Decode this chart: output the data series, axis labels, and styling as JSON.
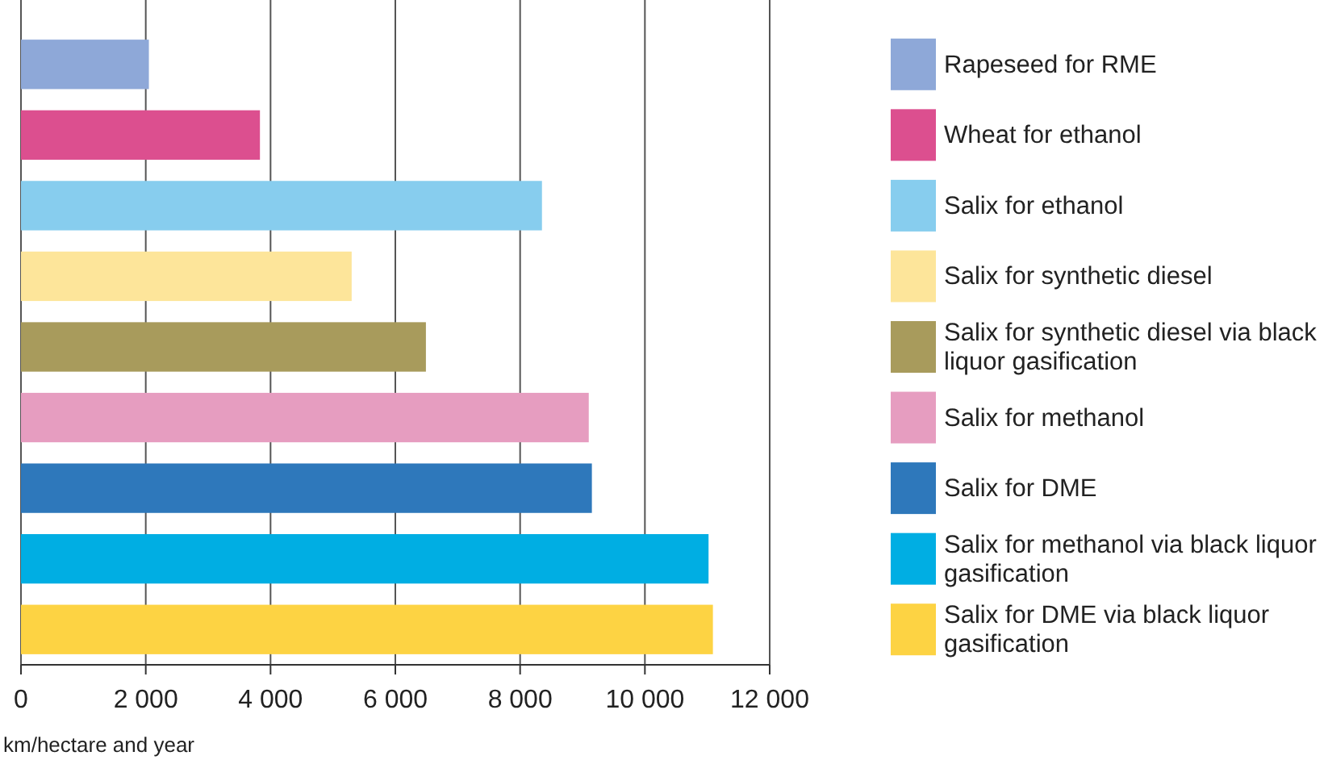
{
  "chart_data": {
    "type": "bar",
    "orientation": "horizontal",
    "xlabel": "km/hectare and year",
    "categories": [
      null,
      null,
      null,
      null,
      null,
      null,
      null,
      null,
      null
    ],
    "series": [
      {
        "name": "Rapeseed for RME",
        "color": "#8ea8d8",
        "values": [
          2050,
          null,
          null,
          null,
          null,
          null,
          null,
          null,
          null
        ]
      },
      {
        "name": "Wheat for ethanol",
        "color": "#dc4f8f",
        "values": [
          null,
          3830,
          null,
          null,
          null,
          null,
          null,
          null,
          null
        ]
      },
      {
        "name": "Salix for ethanol",
        "color": "#87cdee",
        "values": [
          null,
          null,
          8350,
          null,
          null,
          null,
          null,
          null,
          null
        ]
      },
      {
        "name": "Salix for synthetic diesel",
        "color": "#fde59a",
        "values": [
          null,
          null,
          null,
          5300,
          null,
          null,
          null,
          null,
          null
        ]
      },
      {
        "name": "Salix for synthetic diesel via black liquor gasification",
        "color": "#a89b5c",
        "values": [
          null,
          null,
          null,
          null,
          6490,
          null,
          null,
          null,
          null
        ]
      },
      {
        "name": "Salix for methanol",
        "color": "#e69dc0",
        "values": [
          null,
          null,
          null,
          null,
          null,
          9100,
          null,
          null,
          null
        ]
      },
      {
        "name": "Salix for DME",
        "color": "#2e78bb",
        "values": [
          null,
          null,
          null,
          null,
          null,
          null,
          9150,
          null,
          null
        ]
      },
      {
        "name": "Salix for methanol via black liquor gasification",
        "color": "#00aee3",
        "values": [
          null,
          null,
          null,
          null,
          null,
          null,
          null,
          11020,
          null
        ]
      },
      {
        "name": "Salix for DME via black liquor gasification",
        "color": "#fdd343",
        "values": [
          null,
          null,
          null,
          null,
          null,
          null,
          null,
          null,
          11090
        ]
      }
    ],
    "xlim": [
      0,
      12000
    ],
    "xticks": [
      0,
      {
        "value": 2000,
        "label": "2 000"
      },
      {
        "value": 4000,
        "label": "4 000"
      },
      {
        "value": 6000,
        "label": "6 000"
      },
      {
        "value": 8000,
        "label": "8 000"
      },
      {
        "value": 10000,
        "label": "10 000"
      },
      {
        "value": 12000,
        "label": "12 000"
      }
    ],
    "grid": "x",
    "legend": "right",
    "tick_labels": "x"
  }
}
